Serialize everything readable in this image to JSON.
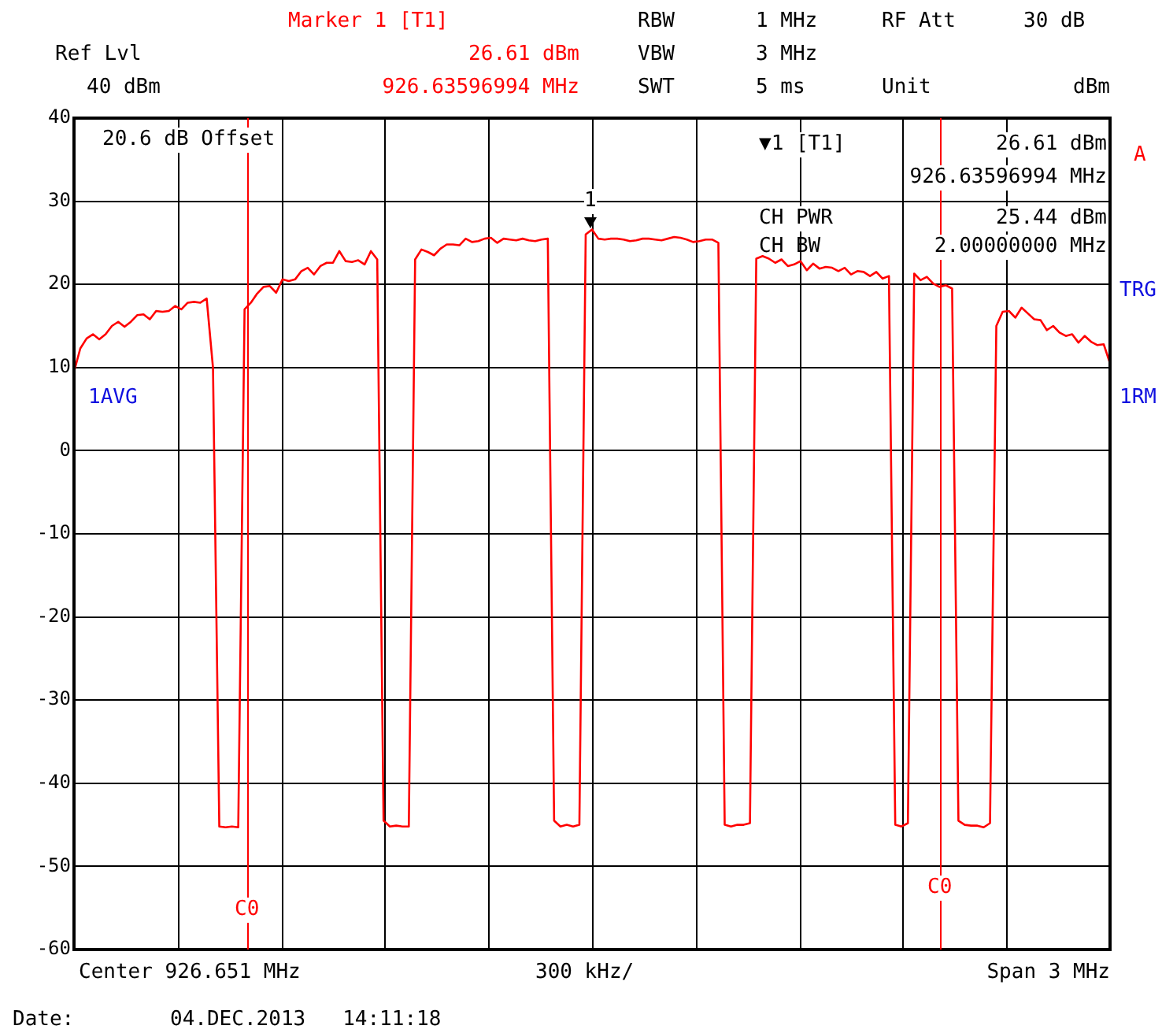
{
  "chart_data": {
    "type": "line",
    "categories": [
      null,
      null,
      null,
      null,
      null,
      null,
      null,
      null,
      null,
      null,
      null,
      null,
      null,
      null,
      null,
      null,
      null,
      null,
      null,
      null,
      null,
      null,
      null,
      null,
      null,
      null,
      null,
      null,
      null,
      null,
      null,
      null,
      null,
      null,
      null,
      null,
      null,
      null,
      null,
      null,
      null,
      null,
      null,
      null,
      null,
      null,
      null,
      null,
      null,
      null,
      null,
      null,
      null,
      null,
      null,
      null,
      null,
      null,
      null,
      null,
      null,
      null,
      null,
      null,
      null,
      null,
      null,
      null,
      null,
      null,
      null,
      null,
      null,
      null,
      null,
      null,
      null,
      null,
      null,
      null,
      null,
      null,
      null,
      null,
      null,
      null,
      null,
      null,
      null,
      null,
      null,
      null,
      null,
      null,
      null,
      null,
      null,
      null,
      null,
      null,
      null,
      null,
      null,
      null,
      null,
      null,
      null,
      null,
      null,
      null,
      null,
      null,
      null,
      null,
      null,
      null,
      null,
      null,
      null,
      null,
      null,
      null,
      null,
      null,
      null,
      null,
      null,
      null,
      null,
      null,
      null,
      null,
      null,
      null,
      null,
      null,
      null,
      null,
      null,
      null,
      null,
      null,
      null,
      null,
      null,
      null,
      null,
      null,
      null,
      null,
      null,
      null,
      null,
      null,
      null,
      null,
      null,
      null,
      null,
      null,
      null,
      null,
      null,
      null,
      null
    ],
    "series": [
      {
        "color": "#ff0000",
        "values": [
          9.5,
          12.3,
          13.5,
          14,
          13.4,
          14,
          15,
          15.5,
          14.9,
          15.5,
          16.3,
          16.4,
          15.8,
          16.8,
          16.7,
          16.8,
          17.4,
          17,
          17.8,
          17.9,
          17.8,
          18.3,
          10,
          -45.2,
          -45.3,
          -45.2,
          -45.3,
          17,
          17.8,
          18.9,
          19.7,
          19.8,
          19,
          20.6,
          20.4,
          20.6,
          21.6,
          22,
          21.2,
          22.2,
          22.6,
          22.6,
          24,
          22.8,
          22.7,
          22.9,
          22.4,
          24,
          23,
          -44.5,
          -45.2,
          -45.1,
          -45.2,
          -45.2,
          23,
          24.2,
          23.9,
          23.5,
          24.3,
          24.8,
          24.8,
          24.7,
          25.5,
          25.1,
          25.2,
          25.5,
          25.6,
          25,
          25.5,
          25.4,
          25.3,
          25.5,
          25.3,
          25.2,
          25.4,
          25.5,
          -44.5,
          -45.2,
          -45,
          -45.2,
          -45,
          26,
          26.61,
          25.5,
          25.4,
          25.5,
          25.5,
          25.4,
          25.2,
          25.3,
          25.5,
          25.5,
          25.4,
          25.3,
          25.5,
          25.7,
          25.6,
          25.4,
          25.1,
          25.2,
          25.4,
          25.4,
          25,
          -45,
          -45.2,
          -45,
          -45,
          -44.8,
          23.1,
          23.4,
          23.1,
          22.6,
          23,
          22.2,
          22.4,
          22.8,
          21.7,
          22.5,
          21.9,
          22.1,
          22,
          21.6,
          22,
          21.2,
          21.6,
          21.5,
          21,
          21.5,
          20.7,
          21,
          -45,
          -45.2,
          -44.8,
          21.3,
          20.5,
          20.9,
          20.1,
          19.7,
          19.9,
          19.5,
          -44.5,
          -45,
          -45.1,
          -45.1,
          -45.3,
          -44.8,
          15,
          16.7,
          16.8,
          16,
          17.2,
          16.5,
          15.8,
          15.7,
          14.5,
          15,
          14.2,
          13.8,
          14,
          13,
          13.8,
          13.1,
          12.7,
          12.8,
          10.5
        ]
      }
    ],
    "ylim": [
      -60,
      40
    ],
    "yticks": [
      -60,
      -50,
      -40,
      -30,
      -20,
      -10,
      0,
      10,
      20,
      30,
      40
    ],
    "tick_labels": "y",
    "grid": true,
    "legend": false,
    "annotations": [
      "Marker 1 [T1]",
      "Ref Lvl",
      "26.61 dBm",
      "40 dBm",
      "926.63596994 MHz",
      "RBW",
      "1 MHz",
      "RF Att",
      "30 dB",
      "VBW",
      "3 MHz",
      "SWT",
      "5 ms",
      "Unit",
      "dBm",
      "20.6 dB Offset",
      "▼1 [T1]",
      "26.61 dBm",
      "926.63596994 MHz",
      "CH PWR",
      "25.44 dBm",
      "CH BW",
      "2.00000000 MHz",
      "A",
      "TRG",
      "1RM",
      "1AVG",
      "Center 926.651 MHz",
      "300 kHz/",
      "Span 3 MHz",
      "Date:",
      "04.DEC.2013   14:11:18",
      "1",
      "C0",
      "C0"
    ]
  }
}
